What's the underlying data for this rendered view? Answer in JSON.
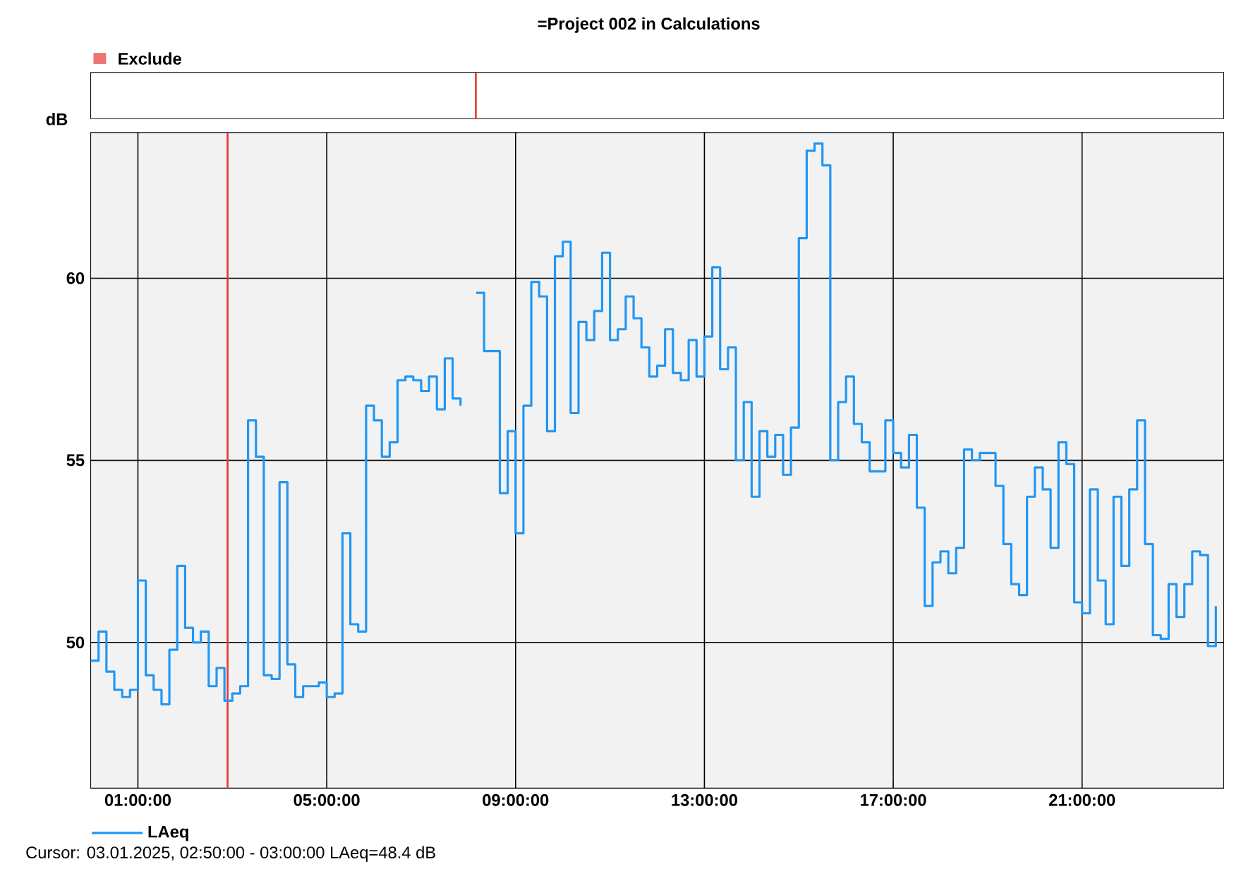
{
  "chart_data": {
    "type": "step",
    "title": "=Project 002 in Calculations",
    "ylabel": "dB",
    "xlim": [
      0,
      24
    ],
    "ylim": [
      46,
      64
    ],
    "grid": true,
    "legend": "bottom left",
    "xticks": [
      {
        "value": 1,
        "label": "01:00:00"
      },
      {
        "value": 5,
        "label": "05:00:00"
      },
      {
        "value": 9,
        "label": "09:00:00"
      },
      {
        "value": 13,
        "label": "13:00:00"
      },
      {
        "value": 17,
        "label": "17:00:00"
      },
      {
        "value": 21,
        "label": "21:00:00"
      }
    ],
    "yticks": [
      50,
      55,
      60
    ],
    "ref_lines": [
      {
        "axis": "x",
        "value": 2.9,
        "color": "#e53935"
      }
    ],
    "annotations": [
      "Exclude",
      "Cursor: 03.01.2025, 02:50:00 - 03:00:00  LAeq=48.4 dB"
    ],
    "series": [
      {
        "name": "LAeq",
        "color": "#2196f3",
        "x": [
          0,
          0.1667,
          0.3333,
          0.5,
          0.6667,
          0.8333,
          1,
          1.1667,
          1.3333,
          1.5,
          1.6667,
          1.8333,
          2,
          2.1667,
          2.3333,
          2.5,
          2.6667,
          2.8333,
          3,
          3.1667,
          3.3333,
          3.5,
          3.6667,
          3.8333,
          4,
          4.1667,
          4.3333,
          4.5,
          4.6667,
          4.8333,
          5,
          5.1667,
          5.3333,
          5.5,
          5.6667,
          5.8333,
          6,
          6.1667,
          6.3333,
          6.5,
          6.6667,
          6.8333,
          7,
          7.1667,
          7.3333,
          7.5,
          7.6667,
          7.8333,
          8,
          8.1667,
          8.3333,
          8.5,
          8.6667,
          8.8333,
          9,
          9.1667,
          9.3333,
          9.5,
          9.6667,
          9.8333,
          10,
          10.1667,
          10.3333,
          10.5,
          10.6667,
          10.8333,
          11,
          11.1667,
          11.3333,
          11.5,
          11.6667,
          11.8333,
          12,
          12.1667,
          12.3333,
          12.5,
          12.6667,
          12.8333,
          13,
          13.1667,
          13.3333,
          13.5,
          13.6667,
          13.8333,
          14,
          14.1667,
          14.3333,
          14.5,
          14.6667,
          14.8333,
          15,
          15.1667,
          15.3333,
          15.5,
          15.6667,
          15.8333,
          16,
          16.1667,
          16.3333,
          16.5,
          16.6667,
          16.8333,
          17,
          17.1667,
          17.3333,
          17.5,
          17.6667,
          17.8333,
          18,
          18.1667,
          18.3333,
          18.5,
          18.6667,
          18.8333,
          19,
          19.1667,
          19.3333,
          19.5,
          19.6667,
          19.8333,
          20,
          20.1667,
          20.3333,
          20.5,
          20.6667,
          20.8333,
          21,
          21.1667,
          21.3333,
          21.5,
          21.6667,
          21.8333,
          22,
          22.1667,
          22.3333,
          22.5,
          22.6667,
          22.8333,
          23,
          23.1667,
          23.3333,
          23.5,
          23.6667,
          23.8333
        ],
        "values": [
          49.5,
          50.3,
          49.2,
          48.7,
          48.5,
          48.7,
          51.7,
          49.1,
          48.7,
          48.3,
          49.8,
          52.1,
          50.4,
          50.0,
          50.3,
          48.8,
          49.3,
          48.4,
          48.6,
          48.8,
          56.1,
          55.1,
          49.1,
          49.0,
          54.4,
          49.4,
          48.5,
          48.8,
          48.8,
          48.9,
          48.5,
          48.6,
          53.0,
          50.5,
          50.3,
          56.5,
          56.1,
          55.1,
          55.5,
          57.2,
          57.3,
          57.2,
          56.9,
          57.3,
          56.4,
          57.8,
          56.7,
          56.5,
          null,
          59.6,
          58.0,
          58.0,
          54.1,
          55.8,
          53.0,
          56.5,
          59.9,
          59.5,
          55.8,
          60.6,
          61.0,
          56.3,
          58.8,
          58.3,
          59.1,
          60.7,
          58.3,
          58.6,
          59.5,
          58.9,
          58.1,
          57.3,
          57.6,
          58.6,
          57.4,
          57.2,
          58.3,
          57.3,
          58.4,
          60.3,
          57.5,
          58.1,
          55.0,
          56.6,
          54.0,
          55.8,
          55.1,
          55.7,
          54.6,
          55.9,
          61.1,
          63.5,
          63.7,
          63.1,
          55.0,
          56.6,
          57.3,
          56.0,
          55.5,
          54.7,
          54.7,
          56.1,
          55.2,
          54.8,
          55.7,
          53.7,
          51.0,
          52.2,
          52.5,
          51.9,
          52.6,
          55.3,
          55.0,
          55.2,
          55.2,
          54.3,
          52.7,
          51.6,
          51.3,
          54.0,
          54.8,
          54.2,
          52.6,
          55.5,
          54.9,
          51.1,
          50.8,
          54.2,
          51.7,
          50.5,
          54.0,
          52.1,
          54.2,
          56.1,
          52.7,
          50.2,
          50.1,
          51.6,
          50.7,
          51.6,
          52.5,
          52.4,
          49.9,
          51.0
        ]
      }
    ]
  }
}
